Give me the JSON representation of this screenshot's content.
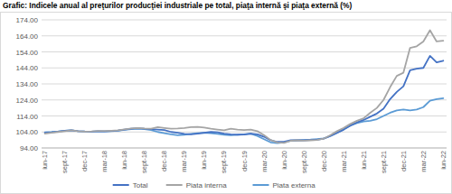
{
  "chart_data": {
    "type": "line",
    "title": "Grafic: Indicele anual al preţurilor producţiei industriale pe total, piaţa internă şi piaţa externă (%)",
    "categories": [
      "iun-17",
      null,
      null,
      "sept-17",
      null,
      null,
      "dec-17",
      null,
      null,
      "mar-18",
      null,
      null,
      "iun-18",
      null,
      null,
      "sept-18",
      null,
      null,
      "dec-18",
      null,
      null,
      "mar-19",
      null,
      null,
      "iun-19",
      null,
      null,
      "sept-19",
      null,
      null,
      "dec-19",
      null,
      null,
      "mar-20",
      null,
      null,
      "iun-20",
      null,
      null,
      "sept-20",
      null,
      null,
      "dec-20",
      null,
      null,
      "mar-21",
      null,
      null,
      "iun-21",
      null,
      null,
      "sept-21",
      null,
      null,
      "dec-21",
      null,
      null,
      "mar-22",
      null,
      null,
      "iun-22"
    ],
    "series": [
      {
        "name": "Total",
        "color": "#4472c4",
        "values": [
          103.5,
          103.8,
          104.2,
          104.8,
          105.0,
          104.5,
          104.3,
          104.2,
          104.5,
          104.4,
          104.6,
          104.9,
          105.5,
          106.0,
          106.3,
          106.0,
          105.8,
          105.5,
          105.2,
          104.0,
          103.5,
          102.8,
          102.5,
          103.0,
          103.5,
          104.0,
          103.8,
          103.0,
          102.5,
          102.3,
          102.4,
          103.0,
          102.5,
          101.0,
          98.8,
          97.8,
          97.9,
          98.8,
          98.9,
          98.8,
          99.0,
          99.2,
          99.8,
          101.5,
          103.5,
          105.5,
          108.0,
          110.0,
          111.5,
          113.5,
          115.5,
          118.5,
          124.5,
          129.0,
          132.5,
          142.5,
          143.5,
          144.0,
          151.5,
          147.5,
          148.5
        ]
      },
      {
        "name": "Piata interna",
        "color": "#a5a5a5",
        "values": [
          103.0,
          103.5,
          104.0,
          104.5,
          105.0,
          104.5,
          104.2,
          104.3,
          104.6,
          104.6,
          104.8,
          105.0,
          105.6,
          106.2,
          106.5,
          106.2,
          106.0,
          107.0,
          106.5,
          106.0,
          106.2,
          106.5,
          107.0,
          107.2,
          106.8,
          106.0,
          105.5,
          105.0,
          106.0,
          105.5,
          105.2,
          105.5,
          104.5,
          102.0,
          99.0,
          97.5,
          97.2,
          98.5,
          98.8,
          98.6,
          98.8,
          99.0,
          99.8,
          102.0,
          104.5,
          106.5,
          109.0,
          111.0,
          112.5,
          116.0,
          119.0,
          124.0,
          132.0,
          139.0,
          141.0,
          156.5,
          157.5,
          160.5,
          167.5,
          160.5,
          161.0
        ]
      },
      {
        "name": "Piata externa",
        "color": "#5b9bd5",
        "values": [
          103.8,
          104.0,
          104.3,
          104.8,
          105.0,
          104.5,
          104.3,
          104.2,
          104.4,
          104.3,
          104.5,
          104.8,
          105.3,
          105.8,
          106.0,
          105.8,
          105.2,
          104.0,
          103.2,
          102.5,
          102.0,
          102.3,
          102.8,
          103.2,
          103.5,
          103.2,
          102.8,
          102.3,
          102.0,
          102.2,
          102.5,
          103.0,
          101.5,
          99.5,
          97.5,
          97.0,
          97.5,
          98.5,
          98.8,
          99.0,
          99.2,
          99.5,
          100.0,
          101.5,
          103.5,
          105.5,
          108.0,
          109.5,
          110.5,
          111.0,
          112.0,
          114.0,
          116.0,
          117.5,
          118.0,
          117.5,
          118.0,
          119.5,
          123.5,
          124.5,
          125.0
        ]
      }
    ],
    "ylim": [
      94,
      174
    ],
    "yticks": [
      {
        "value": 94,
        "label": "94.00"
      },
      {
        "value": 104,
        "label": "104.00"
      },
      {
        "value": 114,
        "label": "114.00"
      },
      {
        "value": 124,
        "label": "124.00"
      },
      {
        "value": 134,
        "label": "134.00"
      },
      {
        "value": 144,
        "label": "144.00"
      },
      {
        "value": 154,
        "label": "154.00"
      },
      {
        "value": 164,
        "label": "164.00"
      },
      {
        "value": 174,
        "label": "174.00"
      }
    ],
    "grid": true,
    "legend": "bottom"
  }
}
